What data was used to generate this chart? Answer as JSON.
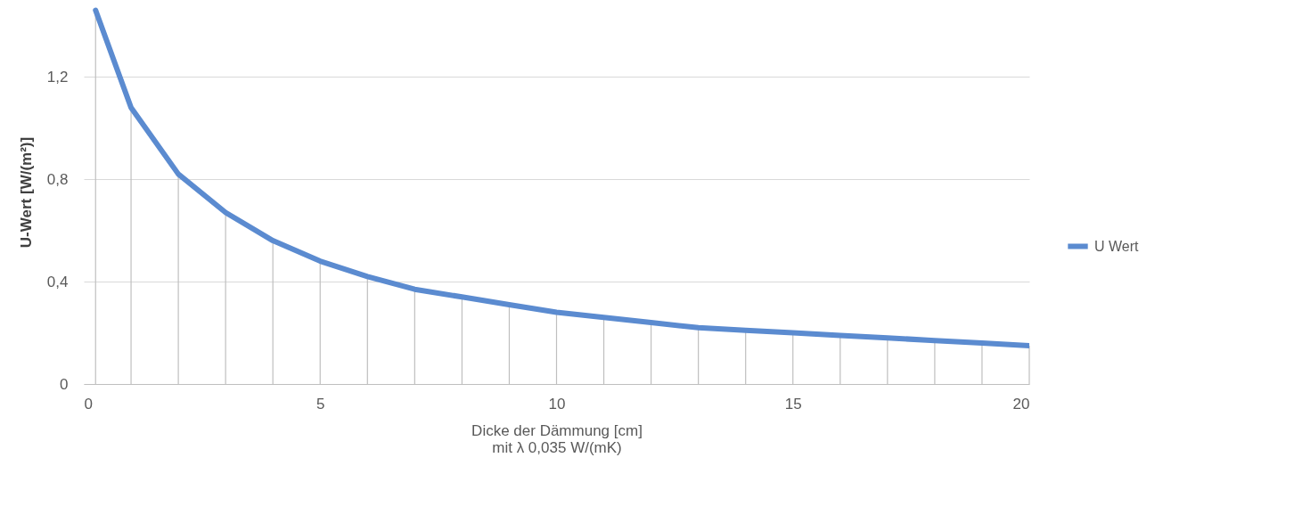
{
  "chart_data": {
    "type": "line",
    "xlabel": "Dicke der Dämmung [cm]\nmit λ 0,035 W/(mK)",
    "ylabel": "U-Wert [W/(m²)]",
    "x": [
      0.25,
      1,
      2,
      3,
      4,
      5,
      6,
      7,
      8,
      9,
      10,
      11,
      12,
      13,
      14,
      15,
      16,
      17,
      18,
      19,
      20
    ],
    "series": [
      {
        "name": "U Wert",
        "color": "#5b8bd0",
        "values": [
          1.46,
          1.08,
          0.82,
          0.67,
          0.56,
          0.48,
          0.42,
          0.37,
          0.34,
          0.31,
          0.28,
          0.26,
          0.24,
          0.22,
          0.21,
          0.2,
          0.19,
          0.18,
          0.17,
          0.16,
          0.15
        ],
        "errors": [
          [
            0,
            1.46
          ],
          [
            0,
            1.08
          ],
          [
            0,
            0.82
          ],
          [
            0,
            0.67
          ],
          [
            0,
            0.56
          ],
          [
            0,
            0.48
          ],
          [
            0,
            0.42
          ],
          [
            0,
            0.37
          ],
          [
            0,
            0.34
          ],
          [
            0,
            0.31
          ],
          [
            0,
            0.28
          ],
          [
            0,
            0.26
          ],
          [
            0,
            0.24
          ],
          [
            0,
            0.22
          ],
          [
            0,
            0.21
          ],
          [
            0,
            0.2
          ],
          [
            0,
            0.19
          ],
          [
            0,
            0.18
          ],
          [
            0,
            0.17
          ],
          [
            0,
            0.16
          ],
          [
            0,
            0.15
          ]
        ]
      }
    ],
    "xlim": [
      0,
      20
    ],
    "xticks": [
      0,
      5,
      10,
      15,
      20
    ],
    "ylim": [
      0,
      1.5
    ],
    "yticks": [
      0,
      {
        "value": 0.4,
        "label": "0,4"
      },
      {
        "value": 0.8,
        "label": "0,8"
      },
      {
        "value": 1.2,
        "label": "1,2"
      }
    ],
    "grid": "y",
    "legend": "right",
    "marker": "none",
    "line_style": "solid"
  }
}
